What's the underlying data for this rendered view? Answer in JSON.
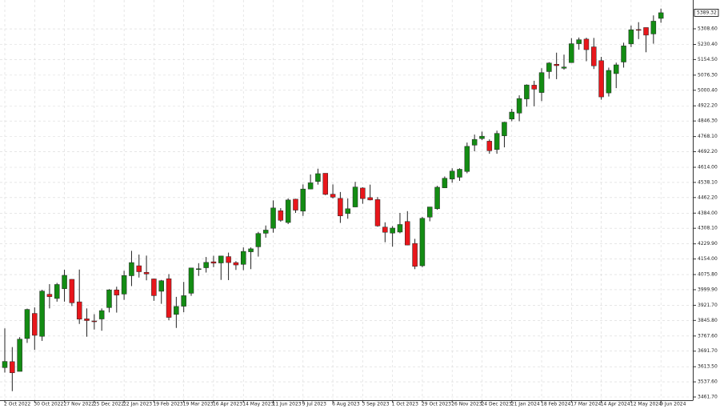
{
  "chart_data": {
    "type": "candlestick",
    "categories": [
      "2 Oct 2022",
      null,
      null,
      null,
      "30 Oct 2022",
      null,
      null,
      null,
      "27 Nov 2022",
      null,
      null,
      null,
      "25 Dec 2022",
      null,
      null,
      null,
      "22 Jan 2023",
      null,
      null,
      null,
      "19 Feb 2023",
      null,
      null,
      null,
      "19 Mar 2023",
      null,
      null,
      null,
      "16 Apr 2023",
      null,
      null,
      null,
      "14 May 2023",
      null,
      null,
      null,
      "11 Jun 2023",
      null,
      null,
      null,
      "9 Jul 2023",
      null,
      null,
      null,
      "6 Aug 2023",
      null,
      null,
      null,
      "3 Sep 2023",
      null,
      null,
      null,
      "1 Oct 2023",
      null,
      null,
      null,
      "29 Oct 2023",
      null,
      null,
      null,
      "26 Nov 2023",
      null,
      null,
      null,
      "24 Dec 2023",
      null,
      null,
      null,
      "21 Jan 2024",
      null,
      null,
      null,
      "18 Feb 2024",
      null,
      null,
      null,
      "17 Mar 2024",
      null,
      null,
      null,
      "14 Apr 2024",
      null,
      null,
      null,
      "12 May 2024",
      null,
      null,
      null,
      "9 Jun 2024"
    ],
    "open": [
      3609,
      3639,
      3590,
      3755,
      3881,
      3766,
      3977,
      3956,
      4005,
      4052,
      3939,
      3854,
      3843,
      3853,
      3910,
      3999,
      3978,
      4070,
      4120,
      4087,
      4054,
      3992,
      4055,
      3876,
      3917,
      3982,
      4102,
      4110,
      4140,
      4134,
      4166,
      4136,
      4127,
      4190,
      4215,
      4283,
      4308,
      4396,
      4337,
      4454,
      4394,
      4505,
      4543,
      4584,
      4479,
      4458,
      4382,
      4415,
      4510,
      4462,
      4452,
      4314,
      4284,
      4289,
      4342,
      4232,
      4120,
      4364,
      4406,
      4511,
      4555,
      4564,
      4593,
      4725,
      4758,
      4745,
      4703,
      4772,
      4856,
      4886,
      4957,
      5026,
      4989,
      5094,
      5131,
      5111,
      5139,
      5234,
      5257,
      5218,
      5149,
      4987,
      5084,
      5142,
      5233,
      5305,
      5315,
      5283,
      5361
    ],
    "high": [
      3806,
      3712,
      3762,
      3905,
      3911,
      4000,
      4028,
      4034,
      4100,
      4053,
      4101,
      3906,
      3877,
      3906,
      4003,
      4015,
      4095,
      4195,
      4176,
      4171,
      4056,
      4049,
      4078,
      3964,
      4039,
      4110,
      4133,
      4164,
      4170,
      4170,
      4186,
      4143,
      4212,
      4212,
      4290,
      4322,
      4448,
      4409,
      4458,
      4456,
      4528,
      4578,
      4607,
      4584,
      4528,
      4490,
      4458,
      4541,
      4514,
      4527,
      4465,
      4338,
      4319,
      4385,
      4394,
      4255,
      4365,
      4415,
      4521,
      4568,
      4609,
      4609,
      4738,
      4778,
      4793,
      4754,
      4798,
      4842,
      4907,
      4975,
      5030,
      5048,
      5111,
      5141,
      5189,
      5179,
      5262,
      5265,
      5264,
      5263,
      5168,
      5114,
      5139,
      5239,
      5325,
      5342,
      5315,
      5376,
      5410
    ],
    "low": [
      3584,
      3491,
      3590,
      3733,
      3698,
      3743,
      3906,
      3940,
      3940,
      3918,
      3828,
      3764,
      3800,
      3794,
      3886,
      3885,
      3949,
      4018,
      4061,
      4047,
      3944,
      3929,
      3847,
      3808,
      3887,
      3969,
      4069,
      4086,
      4113,
      4049,
      4048,
      4099,
      4098,
      4103,
      4166,
      4261,
      4286,
      4341,
      4329,
      4385,
      4370,
      4504,
      4527,
      4474,
      4458,
      4335,
      4356,
      4414,
      4431,
      4448,
      4316,
      4238,
      4216,
      4283,
      4223,
      4103,
      4113,
      4343,
      4401,
      4510,
      4537,
      4546,
      4584,
      4694,
      4751,
      4682,
      4682,
      4714,
      4845,
      4845,
      4918,
      4920,
      4946,
      5058,
      5056,
      5104,
      5138,
      5204,
      5146,
      5107,
      4953,
      4969,
      5011,
      5114,
      5217,
      5257,
      5191,
      5234,
      5339
    ],
    "close": [
      3640,
      3583,
      3752,
      3901,
      3771,
      3993,
      3965,
      4026,
      4072,
      3934,
      3852,
      3845,
      3840,
      3895,
      3999,
      3973,
      4071,
      4136,
      4090,
      4079,
      3970,
      4045,
      3861,
      3916,
      3970,
      4109,
      4105,
      4137,
      4133,
      4169,
      4136,
      4124,
      4192,
      4205,
      4282,
      4299,
      4410,
      4348,
      4450,
      4399,
      4505,
      4536,
      4582,
      4478,
      4464,
      4370,
      4406,
      4515,
      4457,
      4450,
      4320,
      4288,
      4309,
      4327,
      4224,
      4117,
      4358,
      4415,
      4514,
      4559,
      4595,
      4604,
      4719,
      4754,
      4770,
      4697,
      4784,
      4840,
      4891,
      4959,
      5027,
      5006,
      5089,
      5137,
      5124,
      5117,
      5234,
      5254,
      5204,
      5123,
      4967,
      5100,
      5128,
      5223,
      5304,
      5301,
      5277,
      5347,
      5389.32
    ],
    "up_color": "#138c13",
    "down_color": "#e8161b",
    "last_price": 5389.32,
    "ylim": [
      3445.6,
      5453.2
    ],
    "yticks": [
      {
        "value": 3461.7,
        "label": "3461.70"
      },
      {
        "value": 3537.6,
        "label": "3537.60"
      },
      {
        "value": 3613.5,
        "label": "3613.50"
      },
      {
        "value": 3691.7,
        "label": "3691.70"
      },
      {
        "value": 3767.6,
        "label": "3767.60"
      },
      {
        "value": 3845.8,
        "label": "3845.80"
      },
      {
        "value": 3921.7,
        "label": "3921.70"
      },
      {
        "value": 3999.9,
        "label": "3999.90"
      },
      {
        "value": 4075.8,
        "label": "4075.80"
      },
      {
        "value": 4154,
        "label": "4154.00"
      },
      {
        "value": 4229.9,
        "label": "4229.90"
      },
      {
        "value": 4308.1,
        "label": "4308.10"
      },
      {
        "value": 4384,
        "label": "4384.00"
      },
      {
        "value": 4462.2,
        "label": "4462.20"
      },
      {
        "value": 4538.1,
        "label": "4538.10"
      },
      {
        "value": 4614,
        "label": "4614.00"
      },
      {
        "value": 4692.2,
        "label": "4692.20"
      },
      {
        "value": 4768.1,
        "label": "4768.10"
      },
      {
        "value": 4846.3,
        "label": "4846.30"
      },
      {
        "value": 4922.2,
        "label": "4922.20"
      },
      {
        "value": 5000.4,
        "label": "5000.40"
      },
      {
        "value": 5076.3,
        "label": "5076.30"
      },
      {
        "value": 5154.5,
        "label": "5154.50"
      },
      {
        "value": 5230.4,
        "label": "5230.40"
      },
      {
        "value": 5308.6,
        "label": "5308.60"
      }
    ],
    "grid": true
  }
}
